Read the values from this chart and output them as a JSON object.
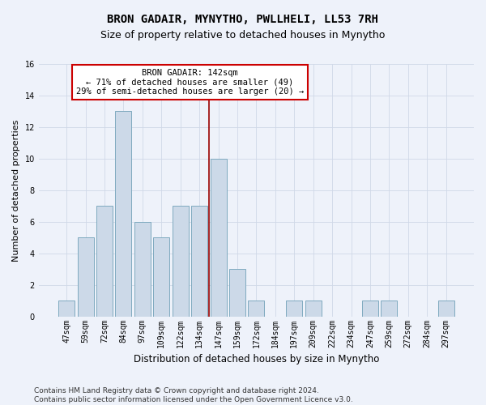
{
  "title": "BRON GADAIR, MYNYTHO, PWLLHELI, LL53 7RH",
  "subtitle": "Size of property relative to detached houses in Mynytho",
  "xlabel": "Distribution of detached houses by size in Mynytho",
  "ylabel": "Number of detached properties",
  "categories": [
    "47sqm",
    "59sqm",
    "72sqm",
    "84sqm",
    "97sqm",
    "109sqm",
    "122sqm",
    "134sqm",
    "147sqm",
    "159sqm",
    "172sqm",
    "184sqm",
    "197sqm",
    "209sqm",
    "222sqm",
    "234sqm",
    "247sqm",
    "259sqm",
    "272sqm",
    "284sqm",
    "297sqm"
  ],
  "values": [
    1,
    5,
    7,
    13,
    6,
    5,
    7,
    7,
    10,
    3,
    1,
    0,
    1,
    1,
    0,
    0,
    1,
    1,
    0,
    0,
    1
  ],
  "bar_color": "#ccd9e8",
  "bar_edge_color": "#7faabf",
  "vline_color": "#990000",
  "vline_x_index": 8,
  "annotation_text": "BRON GADAIR: 142sqm\n← 71% of detached houses are smaller (49)\n29% of semi-detached houses are larger (20) →",
  "annotation_box_facecolor": "#ffffff",
  "annotation_box_edgecolor": "#cc0000",
  "ylim": [
    0,
    16
  ],
  "yticks": [
    0,
    2,
    4,
    6,
    8,
    10,
    12,
    14,
    16
  ],
  "grid_color": "#d0d8e8",
  "background_color": "#eef2fa",
  "footer_text": "Contains HM Land Registry data © Crown copyright and database right 2024.\nContains public sector information licensed under the Open Government Licence v3.0.",
  "title_fontsize": 10,
  "subtitle_fontsize": 9,
  "xlabel_fontsize": 8.5,
  "ylabel_fontsize": 8,
  "tick_fontsize": 7,
  "annotation_fontsize": 7.5,
  "footer_fontsize": 6.5
}
